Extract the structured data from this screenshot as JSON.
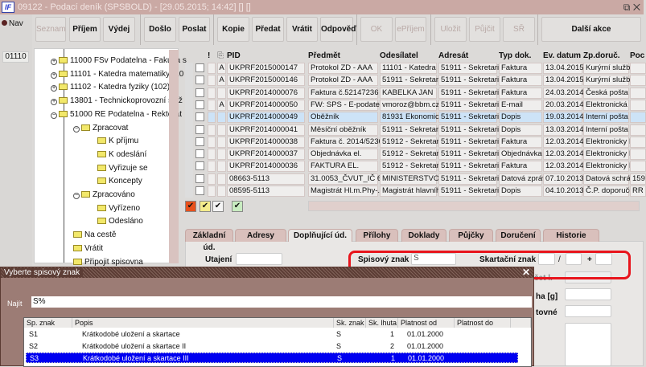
{
  "window": {
    "title": "09122 - Podací deník (SPSBOLD) - [29.05.2015; 14:42] [] []",
    "logo": "IF",
    "nav_label": "Nav",
    "code": "01110"
  },
  "toolbar": [
    {
      "label": "Seznam",
      "enabled": false
    },
    {
      "label": "Příjem",
      "enabled": true
    },
    {
      "label": "Výdej",
      "enabled": true
    },
    {
      "label": "Došlo",
      "enabled": true
    },
    {
      "label": "Poslat",
      "enabled": true
    },
    {
      "label": "Kopie",
      "enabled": true
    },
    {
      "label": "Předat",
      "enabled": true
    },
    {
      "label": "Vrátit",
      "enabled": true
    },
    {
      "label": "Odpověď",
      "enabled": true
    },
    {
      "label": "OK",
      "enabled": false
    },
    {
      "label": "ePříjem",
      "enabled": false
    },
    {
      "label": "Uložit",
      "enabled": false
    },
    {
      "label": "Půjčit",
      "enabled": false
    },
    {
      "label": "SŘ",
      "enabled": false
    },
    {
      "label": "Další akce",
      "enabled": true
    }
  ],
  "tree": [
    {
      "label": "11000 FSv Podatelna - Fakulta s",
      "state": "collapsed"
    },
    {
      "label": "11101 - Katedra matematiky (10",
      "state": "collapsed"
    },
    {
      "label": "11102 - Katedra fyziky (102)",
      "state": "collapsed"
    },
    {
      "label": "13801 - Technickoprovozní služ",
      "state": "collapsed"
    },
    {
      "label": "51000 RE Podatelna - Rektorát",
      "state": "expanded"
    },
    {
      "label": "Zpracovat",
      "state": "expanded"
    },
    {
      "label": "K příjmu"
    },
    {
      "label": "K odeslání"
    },
    {
      "label": "Vyřizuje se"
    },
    {
      "label": "Koncepty"
    },
    {
      "label": "Zpracováno",
      "state": "expanded"
    },
    {
      "label": "Vyřízeno"
    },
    {
      "label": "Odesláno"
    },
    {
      "label": "Na cestě"
    },
    {
      "label": "Vrátit"
    },
    {
      "label": "Připojit spisovna"
    }
  ],
  "grid": {
    "headers": {
      "excl": "!",
      "pid": "PID",
      "predmet": "Předmět",
      "odesilatel": "Odesílatel",
      "adresat": "Adresát",
      "typ": "Typ dok.",
      "datum": "Ev. datum",
      "doruc": "Zp.doruč.",
      "poc": "Poc"
    },
    "rows": [
      {
        "a": "A",
        "pid": "UKPRF2015000147",
        "predmet": "Protokol ZD - AAA",
        "odesilatel": "11101 - Katedra m",
        "adresat": "51911 - Sekretariá",
        "typ": "Faktura",
        "datum": "13.04.2015",
        "doruc": "Kurýrní služba",
        "poc": ""
      },
      {
        "a": "A",
        "pid": "UKPRF2015000146",
        "predmet": "Protokol ZD - AAA",
        "odesilatel": "51911 - Sekretariá",
        "adresat": "51911 - Sekretariá",
        "typ": "Faktura",
        "datum": "13.04.2015",
        "doruc": "Kurýrní služba",
        "poc": ""
      },
      {
        "a": "",
        "pid": "UKPRF2014000076",
        "predmet": "Faktura č.52147236",
        "odesilatel": "KABELKA JAN",
        "adresat": "51911 - Sekretariá",
        "typ": "Faktura",
        "datum": "24.03.2014",
        "doruc": "Česká pošta",
        "poc": ""
      },
      {
        "a": "A",
        "pid": "UKPRF2014000050",
        "predmet": "FW: SPS - E-podatelna",
        "odesilatel": "vmoroz@bbm.cz",
        "adresat": "51911 - Sekretariá",
        "typ": "E-mail",
        "datum": "20.03.2014",
        "doruc": "Elektronická p",
        "poc": ""
      },
      {
        "a": "",
        "pid": "UKPRF2014000049",
        "predmet": "Oběžník",
        "odesilatel": "81931 Ekonomické",
        "adresat": "51911 - Sekretariá",
        "typ": "Dopis",
        "datum": "19.03.2014",
        "doruc": "Interní pošta",
        "poc": "",
        "selected": true
      },
      {
        "a": "",
        "pid": "UKPRF2014000041",
        "predmet": "Měsíční oběžník",
        "odesilatel": "51911 - Sekretariá",
        "adresat": "51911 - Sekretariá",
        "typ": "Dopis",
        "datum": "13.03.2014",
        "doruc": "Interní pošta",
        "poc": ""
      },
      {
        "a": "",
        "pid": "UKPRF2014000038",
        "predmet": "Faktura č. 2014/52364",
        "odesilatel": "51912 - Sekretariá",
        "adresat": "51911 - Sekretariá",
        "typ": "Faktura",
        "datum": "12.03.2014",
        "doruc": "Elektronicky I",
        "poc": ""
      },
      {
        "a": "",
        "pid": "UKPRF2014000037",
        "predmet": "Objednávka el.",
        "odesilatel": "51912 - Sekretariá",
        "adresat": "51911 - Sekretariá",
        "typ": "Objednávka",
        "datum": "12.03.2014",
        "doruc": "Elektronicky I",
        "poc": ""
      },
      {
        "a": "",
        "pid": "UKPRF2014000036",
        "predmet": "FAKTURA EL.",
        "odesilatel": "51912 - Sekretariá",
        "adresat": "51911 - Sekretariá",
        "typ": "Faktura",
        "datum": "12.03.2014",
        "doruc": "Elektronicky I",
        "poc": ""
      },
      {
        "a": "",
        "pid": "08663-5113",
        "predmet": "31.0053_ČVUT_IČ 684",
        "odesilatel": "MINISTERSTVO SK",
        "adresat": "51911 - Sekretariá",
        "typ": "Datová zpráva",
        "datum": "07.10.2013",
        "doruc": "Datová schrá",
        "poc": "159"
      },
      {
        "a": "",
        "pid": "08595-5113",
        "predmet": "Magistrát Hl.m.Phy-.Ma",
        "odesilatel": "Magistrát hlavního",
        "adresat": "51911 - Sekretariá",
        "typ": "Dopis",
        "datum": "04.10.2013",
        "doruc": "Č.P. doporuče",
        "poc": "RR"
      }
    ],
    "filter_checks": [
      {
        "color": "#e8501c",
        "checked": true
      },
      {
        "color": "#f4ec8c",
        "checked": true
      },
      {
        "color": "#f4f4f4",
        "checked": true
      },
      {
        "color": "#c8ecc0",
        "checked": true
      }
    ]
  },
  "tabs": [
    {
      "label": "Základní úd."
    },
    {
      "label": "Adresy"
    },
    {
      "label": "Doplňující úd.",
      "active": true
    },
    {
      "label": "Přílohy"
    },
    {
      "label": "Doklady"
    },
    {
      "label": "Půjčky"
    },
    {
      "label": "Doručení"
    },
    {
      "label": "Historie"
    }
  ],
  "form": {
    "utajeni_label": "Utajení",
    "spisovy_znak_label": "Spisový znak",
    "spisovy_znak_value": "S",
    "skartacni_znak_label": "Skartační znak",
    "slash": "/",
    "plus": "+",
    "partial_label_1": "čet l.",
    "partial_label_2": "ha [g]",
    "partial_label_3": "tovné"
  },
  "dialog": {
    "title": "Vyberte spisový znak",
    "close": "✕",
    "search_label": "Najít",
    "search_value": "S%",
    "headers": [
      "Sp. znak",
      "Popis",
      "Sk. znak",
      "Sk. lhuta",
      "Platnost od",
      "Platnost do"
    ],
    "rows": [
      {
        "znak": "S1",
        "popis": "Krátkodobé uložení a skartace",
        "sk": "S",
        "lhuta": "1",
        "od": "01.01.2000",
        "do": ""
      },
      {
        "znak": "S2",
        "popis": "Krátkodobé uložení a skartace II",
        "sk": "S",
        "lhuta": "2",
        "od": "01.01.2000",
        "do": ""
      },
      {
        "znak": "S3",
        "popis": "Krátkodobé uložení a skartace III",
        "sk": "S",
        "lhuta": "1",
        "od": "01.01.2000",
        "do": "",
        "selected": true
      }
    ]
  },
  "colors": {
    "titlebar": "#caa9a4",
    "selection": "#cde3f7",
    "dialog_selection": "#0000f0",
    "highlight": "#e8141c"
  }
}
